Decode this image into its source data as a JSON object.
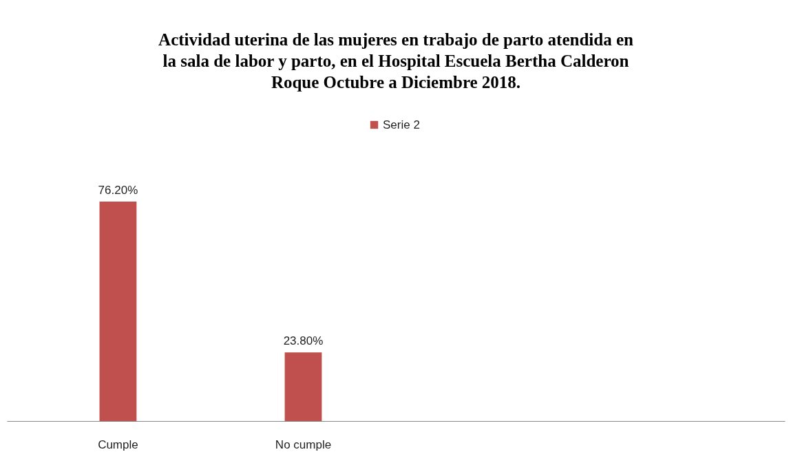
{
  "chart_data": {
    "type": "bar",
    "title": "Actividad uterina de las mujeres en trabajo de parto atendida en la sala de labor y parto, en el Hospital Escuela Bertha Calderon Roque Octubre a Diciembre 2018.",
    "categories": [
      "Cumple",
      "No cumple",
      null,
      null
    ],
    "series": [
      {
        "name": "Serie 2",
        "color": "#c0504d",
        "values": [
          76.2,
          23.8,
          null,
          null
        ],
        "value_labels": [
          "76.20%",
          "23.80%",
          null,
          null
        ]
      }
    ],
    "legend": "top",
    "grid": false
  }
}
